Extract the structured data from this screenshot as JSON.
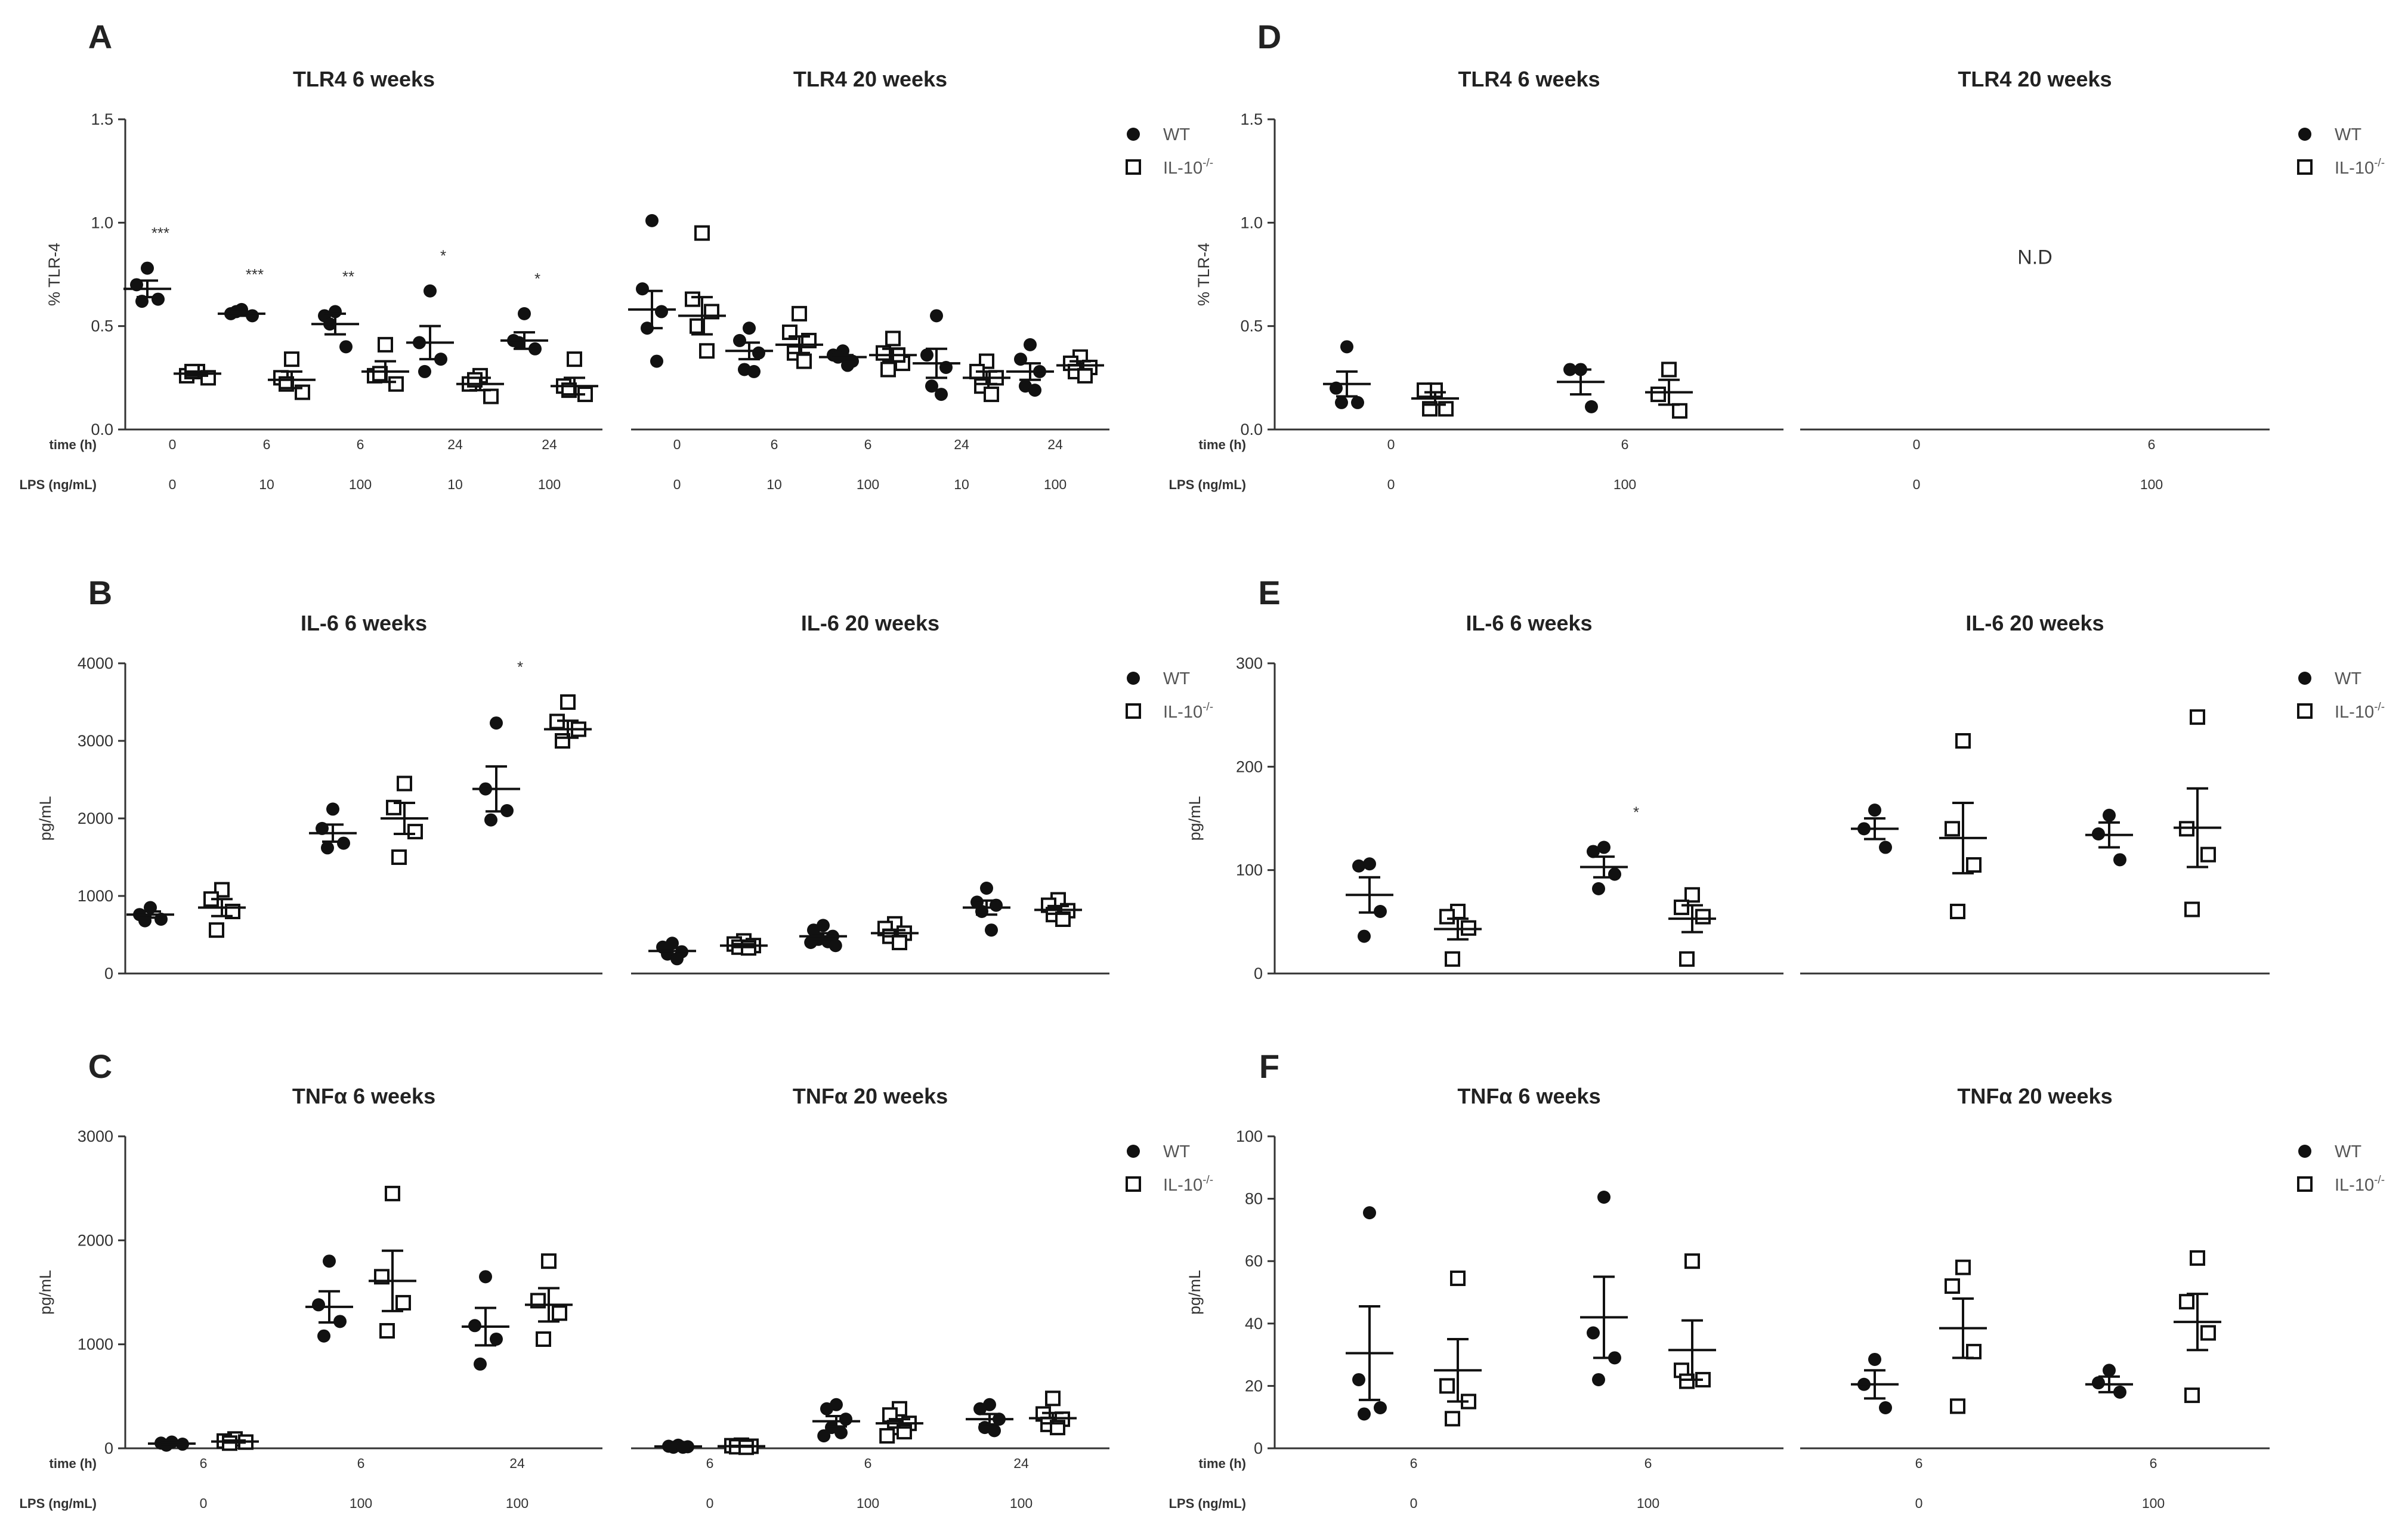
{
  "figure": {
    "labels": [
      "A",
      "B",
      "C",
      "D",
      "E",
      "F"
    ]
  },
  "legend": {
    "wt": "WT",
    "ko": "IL-10",
    "ko_sup": "-/-"
  },
  "row_labels": {
    "time": "time (h)",
    "lps": "LPS (ng/mL)"
  },
  "chart_data": [
    {
      "id": "A1",
      "panel": "A",
      "type": "scatter",
      "title": "TLR4 6 weeks",
      "ylabel": "% TLR-4",
      "ylim": [
        0,
        1.5
      ],
      "yticks": [
        "0.0",
        "0.5",
        "1.0",
        "1.5"
      ],
      "categories": [
        {
          "time": "0",
          "lps": "0",
          "wt": [
            0.78,
            0.7,
            0.63,
            0.62
          ],
          "ko": [
            0.28,
            0.26,
            0.25,
            0.28
          ],
          "wt_mean": 0.68,
          "wt_sem": 0.04,
          "ko_mean": 0.27,
          "ko_sem": 0.01,
          "sig": "***"
        },
        {
          "time": "6",
          "lps": "10",
          "wt": [
            0.58,
            0.56,
            0.55,
            0.57
          ],
          "ko": [
            0.34,
            0.25,
            0.18,
            0.22
          ],
          "wt_mean": 0.56,
          "wt_sem": 0.01,
          "ko_mean": 0.24,
          "ko_sem": 0.04,
          "sig": "***"
        },
        {
          "time": "6",
          "lps": "100",
          "wt": [
            0.57,
            0.55,
            0.4,
            0.51
          ],
          "ko": [
            0.41,
            0.26,
            0.22,
            0.27
          ],
          "wt_mean": 0.51,
          "wt_sem": 0.05,
          "ko_mean": 0.28,
          "ko_sem": 0.05,
          "sig": "**"
        },
        {
          "time": "24",
          "lps": "10",
          "wt": [
            0.67,
            0.42,
            0.34,
            0.28
          ],
          "ko": [
            0.26,
            0.22,
            0.16,
            0.24
          ],
          "wt_mean": 0.42,
          "wt_sem": 0.08,
          "ko_mean": 0.22,
          "ko_sem": 0.03,
          "sig": "*"
        },
        {
          "time": "24",
          "lps": "100",
          "wt": [
            0.56,
            0.43,
            0.39,
            0.42
          ],
          "ko": [
            0.34,
            0.21,
            0.17,
            0.19
          ],
          "wt_mean": 0.43,
          "wt_sem": 0.04,
          "ko_mean": 0.21,
          "ko_sem": 0.04,
          "sig": "*"
        }
      ]
    },
    {
      "id": "A2",
      "panel": "A",
      "type": "scatter",
      "title": "TLR4 20 weeks",
      "ylabel": "",
      "ylim": [
        0,
        1.5
      ],
      "yticks": [],
      "categories": [
        {
          "time": "0",
          "lps": "0",
          "wt": [
            1.01,
            0.68,
            0.57,
            0.49,
            0.33
          ],
          "ko": [
            0.95,
            0.63,
            0.57,
            0.5,
            0.38
          ],
          "wt_mean": 0.58,
          "wt_sem": 0.09,
          "ko_mean": 0.55,
          "ko_sem": 0.09,
          "sig": ""
        },
        {
          "time": "6",
          "lps": "10",
          "wt": [
            0.49,
            0.43,
            0.37,
            0.29,
            0.28
          ],
          "ko": [
            0.56,
            0.47,
            0.43,
            0.37,
            0.33
          ],
          "wt_mean": 0.38,
          "wt_sem": 0.04,
          "ko_mean": 0.41,
          "ko_sem": 0.04,
          "sig": ""
        },
        {
          "time": "6",
          "lps": "100",
          "wt": [
            0.38,
            0.36,
            0.33,
            0.35,
            0.31
          ],
          "ko": [
            0.44,
            0.37,
            0.32,
            0.29,
            0.36
          ],
          "wt_mean": 0.35,
          "wt_sem": 0.01,
          "ko_mean": 0.36,
          "ko_sem": 0.03,
          "sig": ""
        },
        {
          "time": "24",
          "lps": "10",
          "wt": [
            0.55,
            0.36,
            0.3,
            0.21,
            0.17
          ],
          "ko": [
            0.33,
            0.28,
            0.25,
            0.21,
            0.17
          ],
          "wt_mean": 0.32,
          "wt_sem": 0.07,
          "ko_mean": 0.25,
          "ko_sem": 0.03,
          "sig": ""
        },
        {
          "time": "24",
          "lps": "100",
          "wt": [
            0.41,
            0.34,
            0.28,
            0.21,
            0.19
          ],
          "ko": [
            0.35,
            0.32,
            0.3,
            0.28,
            0.26
          ],
          "wt_mean": 0.28,
          "wt_sem": 0.04,
          "ko_mean": 0.31,
          "ko_sem": 0.02,
          "sig": ""
        }
      ]
    },
    {
      "id": "D1",
      "panel": "D",
      "type": "scatter",
      "title": "TLR4 6 weeks",
      "ylabel": "% TLR-4",
      "ylim": [
        0,
        1.5
      ],
      "yticks": [
        "0.0",
        "0.5",
        "1.0",
        "1.5"
      ],
      "categories": [
        {
          "time": "0",
          "lps": "0",
          "wt": [
            0.4,
            0.2,
            0.13,
            0.13
          ],
          "ko": [
            0.19,
            0.19,
            0.1,
            0.1
          ],
          "wt_mean": 0.22,
          "wt_sem": 0.06,
          "ko_mean": 0.15,
          "ko_sem": 0.03,
          "sig": ""
        },
        {
          "time": "6",
          "lps": "100",
          "wt": [
            0.29,
            0.29,
            0.11
          ],
          "ko": [
            0.29,
            0.17,
            0.09
          ],
          "wt_mean": 0.23,
          "wt_sem": 0.06,
          "ko_mean": 0.18,
          "ko_sem": 0.06,
          "sig": ""
        }
      ]
    },
    {
      "id": "D2",
      "panel": "D",
      "type": "scatter",
      "title": "TLR4 20 weeks",
      "ylabel": "",
      "ylim": [
        0,
        1.5
      ],
      "yticks": [],
      "annotation": "N.D",
      "categories": [
        {
          "time": "0",
          "lps": "0",
          "wt": [],
          "ko": [],
          "sig": ""
        },
        {
          "time": "6",
          "lps": "100",
          "wt": [],
          "ko": [],
          "sig": ""
        }
      ]
    },
    {
      "id": "B1",
      "panel": "B",
      "type": "scatter",
      "title": "IL-6 6 weeks",
      "ylabel": "pg/mL",
      "ylim": [
        0,
        4000
      ],
      "yticks": [
        "0",
        "1000",
        "2000",
        "3000",
        "4000"
      ],
      "categories": [
        {
          "wt": [
            850,
            760,
            700,
            680
          ],
          "ko": [
            1080,
            960,
            800,
            560
          ],
          "wt_mean": 760,
          "wt_sem": 40,
          "ko_mean": 850,
          "ko_sem": 110,
          "sig": ""
        },
        {
          "wt": [
            2120,
            1870,
            1680,
            1620
          ],
          "ko": [
            2450,
            2140,
            1830,
            1500
          ],
          "wt_mean": 1810,
          "wt_sem": 110,
          "ko_mean": 2000,
          "ko_sem": 200,
          "sig": ""
        },
        {
          "wt": [
            3230,
            2380,
            2100,
            1980
          ],
          "ko": [
            3500,
            3250,
            3150,
            3000
          ],
          "wt_mean": 2380,
          "wt_sem": 290,
          "ko_mean": 3150,
          "ko_sem": 110,
          "sig": "*"
        }
      ]
    },
    {
      "id": "B2",
      "panel": "B",
      "type": "scatter",
      "title": "IL-6 20 weeks",
      "ylabel": "",
      "ylim": [
        0,
        4000
      ],
      "yticks": [],
      "categories": [
        {
          "wt": [
            390,
            340,
            280,
            250,
            190
          ],
          "ko": [
            420,
            380,
            360,
            340,
            330
          ],
          "wt_mean": 290,
          "wt_sem": 40,
          "ko_mean": 360,
          "ko_sem": 20,
          "sig": ""
        },
        {
          "wt": [
            620,
            560,
            480,
            440,
            410,
            400,
            360
          ],
          "ko": [
            640,
            580,
            520,
            480,
            400
          ],
          "wt_mean": 480,
          "wt_sem": 40,
          "ko_mean": 520,
          "ko_sem": 40,
          "sig": ""
        },
        {
          "wt": [
            1100,
            920,
            880,
            800,
            560
          ],
          "ko": [
            950,
            880,
            810,
            760,
            700
          ],
          "wt_mean": 850,
          "wt_sem": 90,
          "ko_mean": 820,
          "ko_sem": 50,
          "sig": ""
        }
      ]
    },
    {
      "id": "E1",
      "panel": "E",
      "type": "scatter",
      "title": "IL-6 6 weeks",
      "ylabel": "pg/mL",
      "ylim": [
        0,
        300
      ],
      "yticks": [
        "0",
        "100",
        "200",
        "300"
      ],
      "categories": [
        {
          "wt": [
            106,
            104,
            60,
            36
          ],
          "ko": [
            60,
            55,
            44,
            14
          ],
          "wt_mean": 76,
          "wt_sem": 17,
          "ko_mean": 43,
          "ko_sem": 10,
          "sig": ""
        },
        {
          "wt": [
            122,
            118,
            96,
            82
          ],
          "ko": [
            76,
            64,
            55,
            14
          ],
          "wt_mean": 103,
          "wt_sem": 10,
          "ko_mean": 53,
          "ko_sem": 13,
          "sig": "*"
        }
      ]
    },
    {
      "id": "E2",
      "panel": "E",
      "type": "scatter",
      "title": "IL-6 20 weeks",
      "ylabel": "",
      "ylim": [
        0,
        300
      ],
      "yticks": [],
      "categories": [
        {
          "wt": [
            158,
            140,
            122
          ],
          "ko": [
            225,
            140,
            105,
            60
          ],
          "wt_mean": 140,
          "wt_sem": 10,
          "ko_mean": 131,
          "ko_sem": 34,
          "sig": ""
        },
        {
          "wt": [
            153,
            135,
            110
          ],
          "ko": [
            248,
            140,
            115,
            62
          ],
          "wt_mean": 134,
          "wt_sem": 12,
          "ko_mean": 141,
          "ko_sem": 38,
          "sig": ""
        }
      ]
    },
    {
      "id": "C1",
      "panel": "C",
      "type": "scatter",
      "title": "TNFα 6 weeks",
      "ylabel": "pg/mL",
      "ylim": [
        0,
        3000
      ],
      "yticks": [
        "0",
        "1000",
        "2000",
        "3000"
      ],
      "categories": [
        {
          "time": "6",
          "lps": "0",
          "wt": [
            60,
            50,
            40,
            30
          ],
          "ko": [
            90,
            70,
            60,
            50
          ],
          "wt_mean": 45,
          "wt_sem": 10,
          "ko_mean": 65,
          "ko_sem": 10,
          "sig": ""
        },
        {
          "time": "6",
          "lps": "100",
          "wt": [
            1800,
            1380,
            1220,
            1080
          ],
          "ko": [
            2450,
            1650,
            1400,
            1130
          ],
          "wt_mean": 1360,
          "wt_sem": 150,
          "ko_mean": 1610,
          "ko_sem": 290,
          "sig": ""
        },
        {
          "time": "24",
          "lps": "100",
          "wt": [
            1650,
            1180,
            1050,
            810
          ],
          "ko": [
            1800,
            1420,
            1300,
            1050
          ],
          "wt_mean": 1170,
          "wt_sem": 180,
          "ko_mean": 1380,
          "ko_sem": 160,
          "sig": ""
        }
      ]
    },
    {
      "id": "C2",
      "panel": "C",
      "type": "scatter",
      "title": "TNFα 20 weeks",
      "ylabel": "",
      "ylim": [
        0,
        3000
      ],
      "yticks": [],
      "categories": [
        {
          "time": "6",
          "lps": "0",
          "wt": [
            30,
            20,
            15,
            10,
            10
          ],
          "ko": [
            30,
            25,
            20,
            15,
            10
          ],
          "wt_mean": 18,
          "wt_sem": 4,
          "ko_mean": 20,
          "ko_sem": 4,
          "sig": ""
        },
        {
          "time": "6",
          "lps": "100",
          "wt": [
            420,
            380,
            280,
            200,
            150,
            120
          ],
          "ko": [
            380,
            320,
            240,
            200,
            160,
            120
          ],
          "wt_mean": 260,
          "wt_sem": 50,
          "ko_mean": 240,
          "ko_sem": 40,
          "sig": ""
        },
        {
          "time": "24",
          "lps": "100",
          "wt": [
            420,
            380,
            280,
            200,
            170
          ],
          "ko": [
            480,
            330,
            280,
            230,
            200
          ],
          "wt_mean": 280,
          "wt_sem": 50,
          "ko_mean": 290,
          "ko_sem": 50,
          "sig": ""
        }
      ]
    },
    {
      "id": "F1",
      "panel": "F",
      "type": "scatter",
      "title": "TNFα 6 weeks",
      "ylabel": "pg/mL",
      "ylim": [
        0,
        100
      ],
      "yticks": [
        "0",
        "20",
        "40",
        "60",
        "80",
        "100"
      ],
      "categories": [
        {
          "time": "6",
          "lps": "0",
          "wt": [
            75.5,
            22,
            13,
            11
          ],
          "ko": [
            54.5,
            20,
            15,
            9.5
          ],
          "wt_mean": 30.5,
          "wt_sem": 15,
          "ko_mean": 25,
          "ko_sem": 10,
          "sig": ""
        },
        {
          "time": "6",
          "lps": "100",
          "wt": [
            80.5,
            37,
            29,
            22
          ],
          "ko": [
            60,
            25,
            22,
            21.5
          ],
          "wt_mean": 42,
          "wt_sem": 13,
          "ko_mean": 31.5,
          "ko_sem": 9.5,
          "sig": ""
        }
      ]
    },
    {
      "id": "F2",
      "panel": "F",
      "type": "scatter",
      "title": "TNFα 20 weeks",
      "ylabel": "",
      "ylim": [
        0,
        100
      ],
      "yticks": [],
      "categories": [
        {
          "time": "6",
          "lps": "0",
          "wt": [
            28.5,
            20.5,
            13
          ],
          "ko": [
            58,
            52,
            31,
            13.5
          ],
          "wt_mean": 20.5,
          "wt_sem": 4.5,
          "ko_mean": 38.5,
          "ko_sem": 9.5,
          "sig": ""
        },
        {
          "time": "6",
          "lps": "100",
          "wt": [
            25,
            21,
            18
          ],
          "ko": [
            61,
            47,
            37,
            17
          ],
          "wt_mean": 20.5,
          "wt_sem": 2.5,
          "ko_mean": 40.5,
          "ko_sem": 9,
          "sig": ""
        }
      ]
    }
  ]
}
